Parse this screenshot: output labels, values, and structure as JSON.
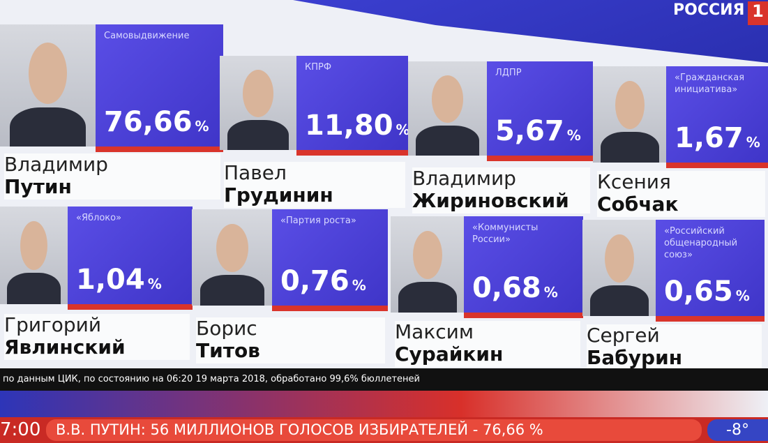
{
  "logo": {
    "channel": "РОССИЯ",
    "number": "1"
  },
  "candidates": [
    {
      "first_name": "Владимир",
      "last_name": "Путин",
      "party": "Самовыдвижение",
      "value": "76,66",
      "unit": "%"
    },
    {
      "first_name": "Павел",
      "last_name": "Грудинин",
      "party": "КПРФ",
      "value": "11,80",
      "unit": "%"
    },
    {
      "first_name": "Владимир",
      "last_name": "Жириновский",
      "party": "ЛДПР",
      "value": "5,67",
      "unit": "%"
    },
    {
      "first_name": "Ксения",
      "last_name": "Собчак",
      "party": "«Гражданская инициатива»",
      "value": "1,67",
      "unit": "%"
    },
    {
      "first_name": "Григорий",
      "last_name": "Явлинский",
      "party": "«Яблоко»",
      "value": "1,04",
      "unit": "%"
    },
    {
      "first_name": "Борис",
      "last_name": "Титов",
      "party": "«Партия роста»",
      "value": "0,76",
      "unit": "%"
    },
    {
      "first_name": "Максим",
      "last_name": "Сурайкин",
      "party": "«Коммунисты России»",
      "value": "0,68",
      "unit": "%"
    },
    {
      "first_name": "Сергей",
      "last_name": "Бабурин",
      "party": "«Российский общенародный союз»",
      "value": "0,65",
      "unit": "%"
    }
  ],
  "footer": "по данным ЦИК, по состоянию на 06:20 19 марта 2018, обработано 99,6% бюллетеней",
  "ticker": {
    "time": "7:00",
    "headline": "В.В. ПУТИН: 56 МИЛЛИОНОВ ГОЛОСОВ ИЗБИРАТЕЛЕЙ - 76,66 %",
    "temperature": "-8°"
  }
}
